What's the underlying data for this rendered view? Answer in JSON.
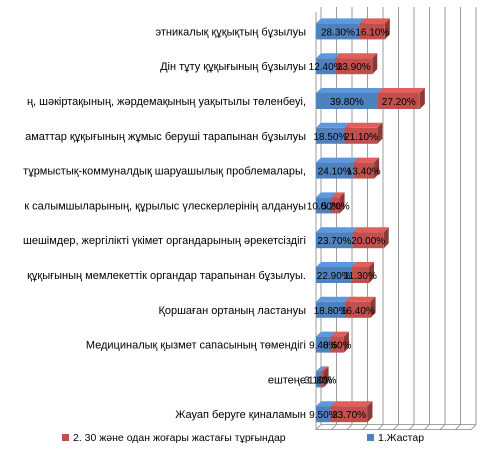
{
  "chart_data": {
    "type": "bar",
    "orientation": "horizontal",
    "stacked": true,
    "categories": [
      "этникалық құқықтың бұзылуы",
      "Дін тұту құқығының бұзылуы",
      "ң, шәкіртақының, жәрдемақының уақытылы төленбеуі,",
      "аматтар құқығының жұмыс беруші тарапынан бұзылуы",
      "тұрмыстық-коммуналдық шаруашылық проблемалары,",
      "к салымшыларының, құрылыс үлескерлерінің алдануы",
      "шешімдер,  жергілікті үкімет органдарының әрекетсіздігі",
      "құқығының мемлекеттік органдар тарапынан бұзылуы.",
      "Қоршаған ортаның ластануы",
      "Медициналық қызмет сапасының төмендігі",
      "ештеңе",
      "Жауап беруге қиналамын"
    ],
    "series": [
      {
        "name": "1.Жастар",
        "color": "#4F81BD",
        "values": [
          28.3,
          12.4,
          39.8,
          18.5,
          24.1,
          10.0,
          23.7,
          22.9,
          18.8,
          9.4,
          3.1,
          9.5
        ],
        "labels": [
          "28.30%",
          "12.40%",
          "39.80%",
          "18.50%",
          "24.10%",
          "10.00%",
          "23.70%",
          "22.90%",
          "18.80%",
          "9.40%",
          "3.10%",
          "9.50%"
        ]
      },
      {
        "name": "2. 30 және одан жоғары жастағы тұрғындар",
        "color": "#C0504D",
        "values": [
          16.1,
          23.9,
          27.2,
          21.1,
          13.4,
          5.2,
          20.0,
          11.3,
          16.4,
          8.6,
          1.8,
          23.7
        ],
        "labels": [
          "16.10%",
          "23.90%",
          "27.20%",
          "21.10%",
          "13.40%",
          "5.20%",
          "20.00%",
          "11.30%",
          "16.40%",
          "8.60%",
          "1.80%",
          "23.70%"
        ]
      }
    ],
    "xlim": [
      0,
      100
    ],
    "grid": true,
    "legend_position": "bottom"
  }
}
